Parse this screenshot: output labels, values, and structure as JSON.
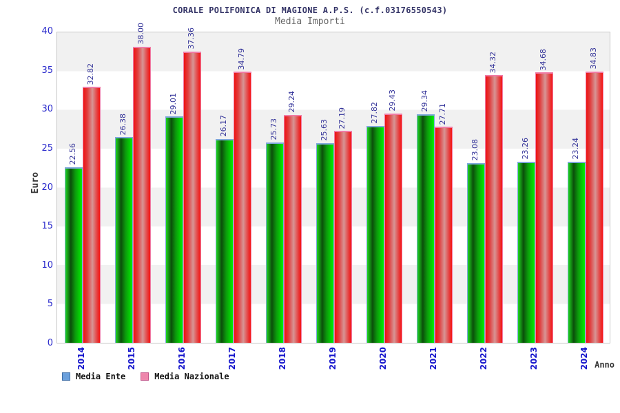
{
  "chart_data": {
    "type": "bar",
    "title": "CORALE POLIFONICA DI MAGIONE A.P.S. (c.f.03176550543)",
    "subtitle": "Media Importi",
    "xlabel": "Anno",
    "ylabel": "Euro",
    "categories": [
      "2014",
      "2015",
      "2016",
      "2017",
      "2018",
      "2019",
      "2020",
      "2021",
      "2022",
      "2023",
      "2024"
    ],
    "series": [
      {
        "name": "Media Ente",
        "values": [
          22.56,
          26.38,
          29.01,
          26.17,
          25.73,
          25.63,
          27.82,
          29.34,
          23.08,
          23.26,
          23.24
        ]
      },
      {
        "name": "Media Nazionale",
        "values": [
          32.82,
          38.0,
          37.36,
          34.79,
          29.24,
          27.19,
          29.43,
          27.71,
          34.32,
          34.68,
          34.83
        ]
      }
    ],
    "ylim": [
      0,
      40
    ],
    "yticks": [
      0,
      5,
      10,
      15,
      20,
      25,
      30,
      35,
      40
    ],
    "grid": "horizontal alternating bands",
    "legend_position": "bottom-left",
    "value_label_format": "2-decimals, rotated 90deg above bar",
    "tick_label_rotation": "vertical"
  },
  "colors": {
    "bar_ente_green": "#00ee00",
    "bar_ente_green_dark": "#0b4f0b",
    "bar_ente_cap": "#7fa8dc",
    "bar_nazionale_red": "#f51414",
    "bar_nazionale_red_light": "#d79595",
    "bar_nazionale_cap": "#f07ca6",
    "legend_swatch_ente": "#6ba0dc",
    "legend_swatch_nazionale": "#ee86ac",
    "axis_tick_blue": "#2a2acc",
    "bar_value_navy": "#333399",
    "title_navy": "#333366",
    "subtitle_gray": "#666666",
    "band_gray": "#f1f1f1"
  }
}
